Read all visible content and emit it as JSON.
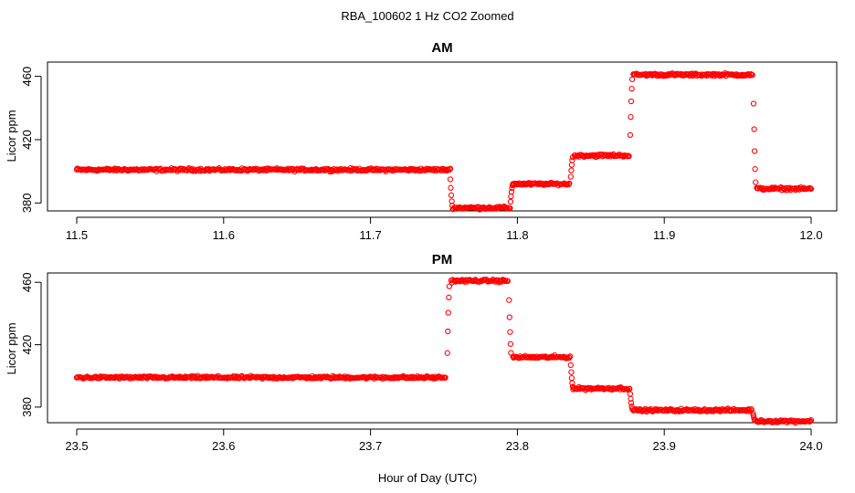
{
  "figure": {
    "title": "RBA_100602  1 Hz CO2 Zoomed",
    "xlabel": "Hour of Day (UTC)"
  },
  "colors": {
    "points": "#ff0000",
    "axes": "#000000",
    "background": "#ffffff"
  },
  "chart_data": [
    {
      "type": "scatter",
      "title": "AM",
      "xlabel": "",
      "ylabel": "Licor ppm",
      "xlim": [
        11.5,
        12.0
      ],
      "ylim": [
        375,
        469
      ],
      "x_ticks": [
        "11.5",
        "11.6",
        "11.7",
        "11.8",
        "11.9",
        "12.0"
      ],
      "y_ticks": [
        "380",
        "420",
        "460"
      ],
      "grid": false,
      "marker": "open-circle",
      "sample_rate_hz": 1,
      "segments": [
        {
          "x_start": 11.5,
          "x_end": 11.754,
          "y": 401
        },
        {
          "x_start": 11.756,
          "x_end": 11.795,
          "y": 377
        },
        {
          "x_start": 11.797,
          "x_end": 11.835,
          "y": 392
        },
        {
          "x_start": 11.839,
          "x_end": 11.876,
          "y": 410
        },
        {
          "x_start": 11.879,
          "x_end": 11.96,
          "y": 461
        },
        {
          "x_start": 11.963,
          "x_end": 12.0,
          "y": 389
        }
      ],
      "transitions": [
        {
          "x": 11.755,
          "from": 401,
          "to": 377
        },
        {
          "x": 11.796,
          "from": 377,
          "to": 392
        },
        {
          "x": 11.837,
          "from": 392,
          "to": 410
        },
        {
          "x": 11.8775,
          "from": 410,
          "to": 461
        },
        {
          "x": 11.9615,
          "from": 461,
          "to": 389
        }
      ]
    },
    {
      "type": "scatter",
      "title": "PM",
      "xlabel": "",
      "ylabel": "Licor ppm",
      "xlim": [
        23.5,
        24.0
      ],
      "ylim": [
        370,
        466
      ],
      "x_ticks": [
        "23.5",
        "23.6",
        "23.7",
        "23.8",
        "23.9",
        "24.0"
      ],
      "y_ticks": [
        "380",
        "420",
        "460"
      ],
      "grid": false,
      "marker": "open-circle",
      "sample_rate_hz": 1,
      "segments": [
        {
          "x_start": 23.5,
          "x_end": 23.751,
          "y": 399
        },
        {
          "x_start": 23.755,
          "x_end": 23.793,
          "y": 461
        },
        {
          "x_start": 23.797,
          "x_end": 23.836,
          "y": 412
        },
        {
          "x_start": 23.838,
          "x_end": 23.876,
          "y": 392
        },
        {
          "x_start": 23.879,
          "x_end": 23.959,
          "y": 378
        },
        {
          "x_start": 23.963,
          "x_end": 24.0,
          "y": 371
        }
      ],
      "transitions": [
        {
          "x": 23.753,
          "from": 399,
          "to": 461
        },
        {
          "x": 23.795,
          "from": 461,
          "to": 412
        },
        {
          "x": 23.837,
          "from": 412,
          "to": 392
        },
        {
          "x": 23.8775,
          "from": 392,
          "to": 378
        },
        {
          "x": 23.961,
          "from": 378,
          "to": 371
        }
      ]
    }
  ]
}
